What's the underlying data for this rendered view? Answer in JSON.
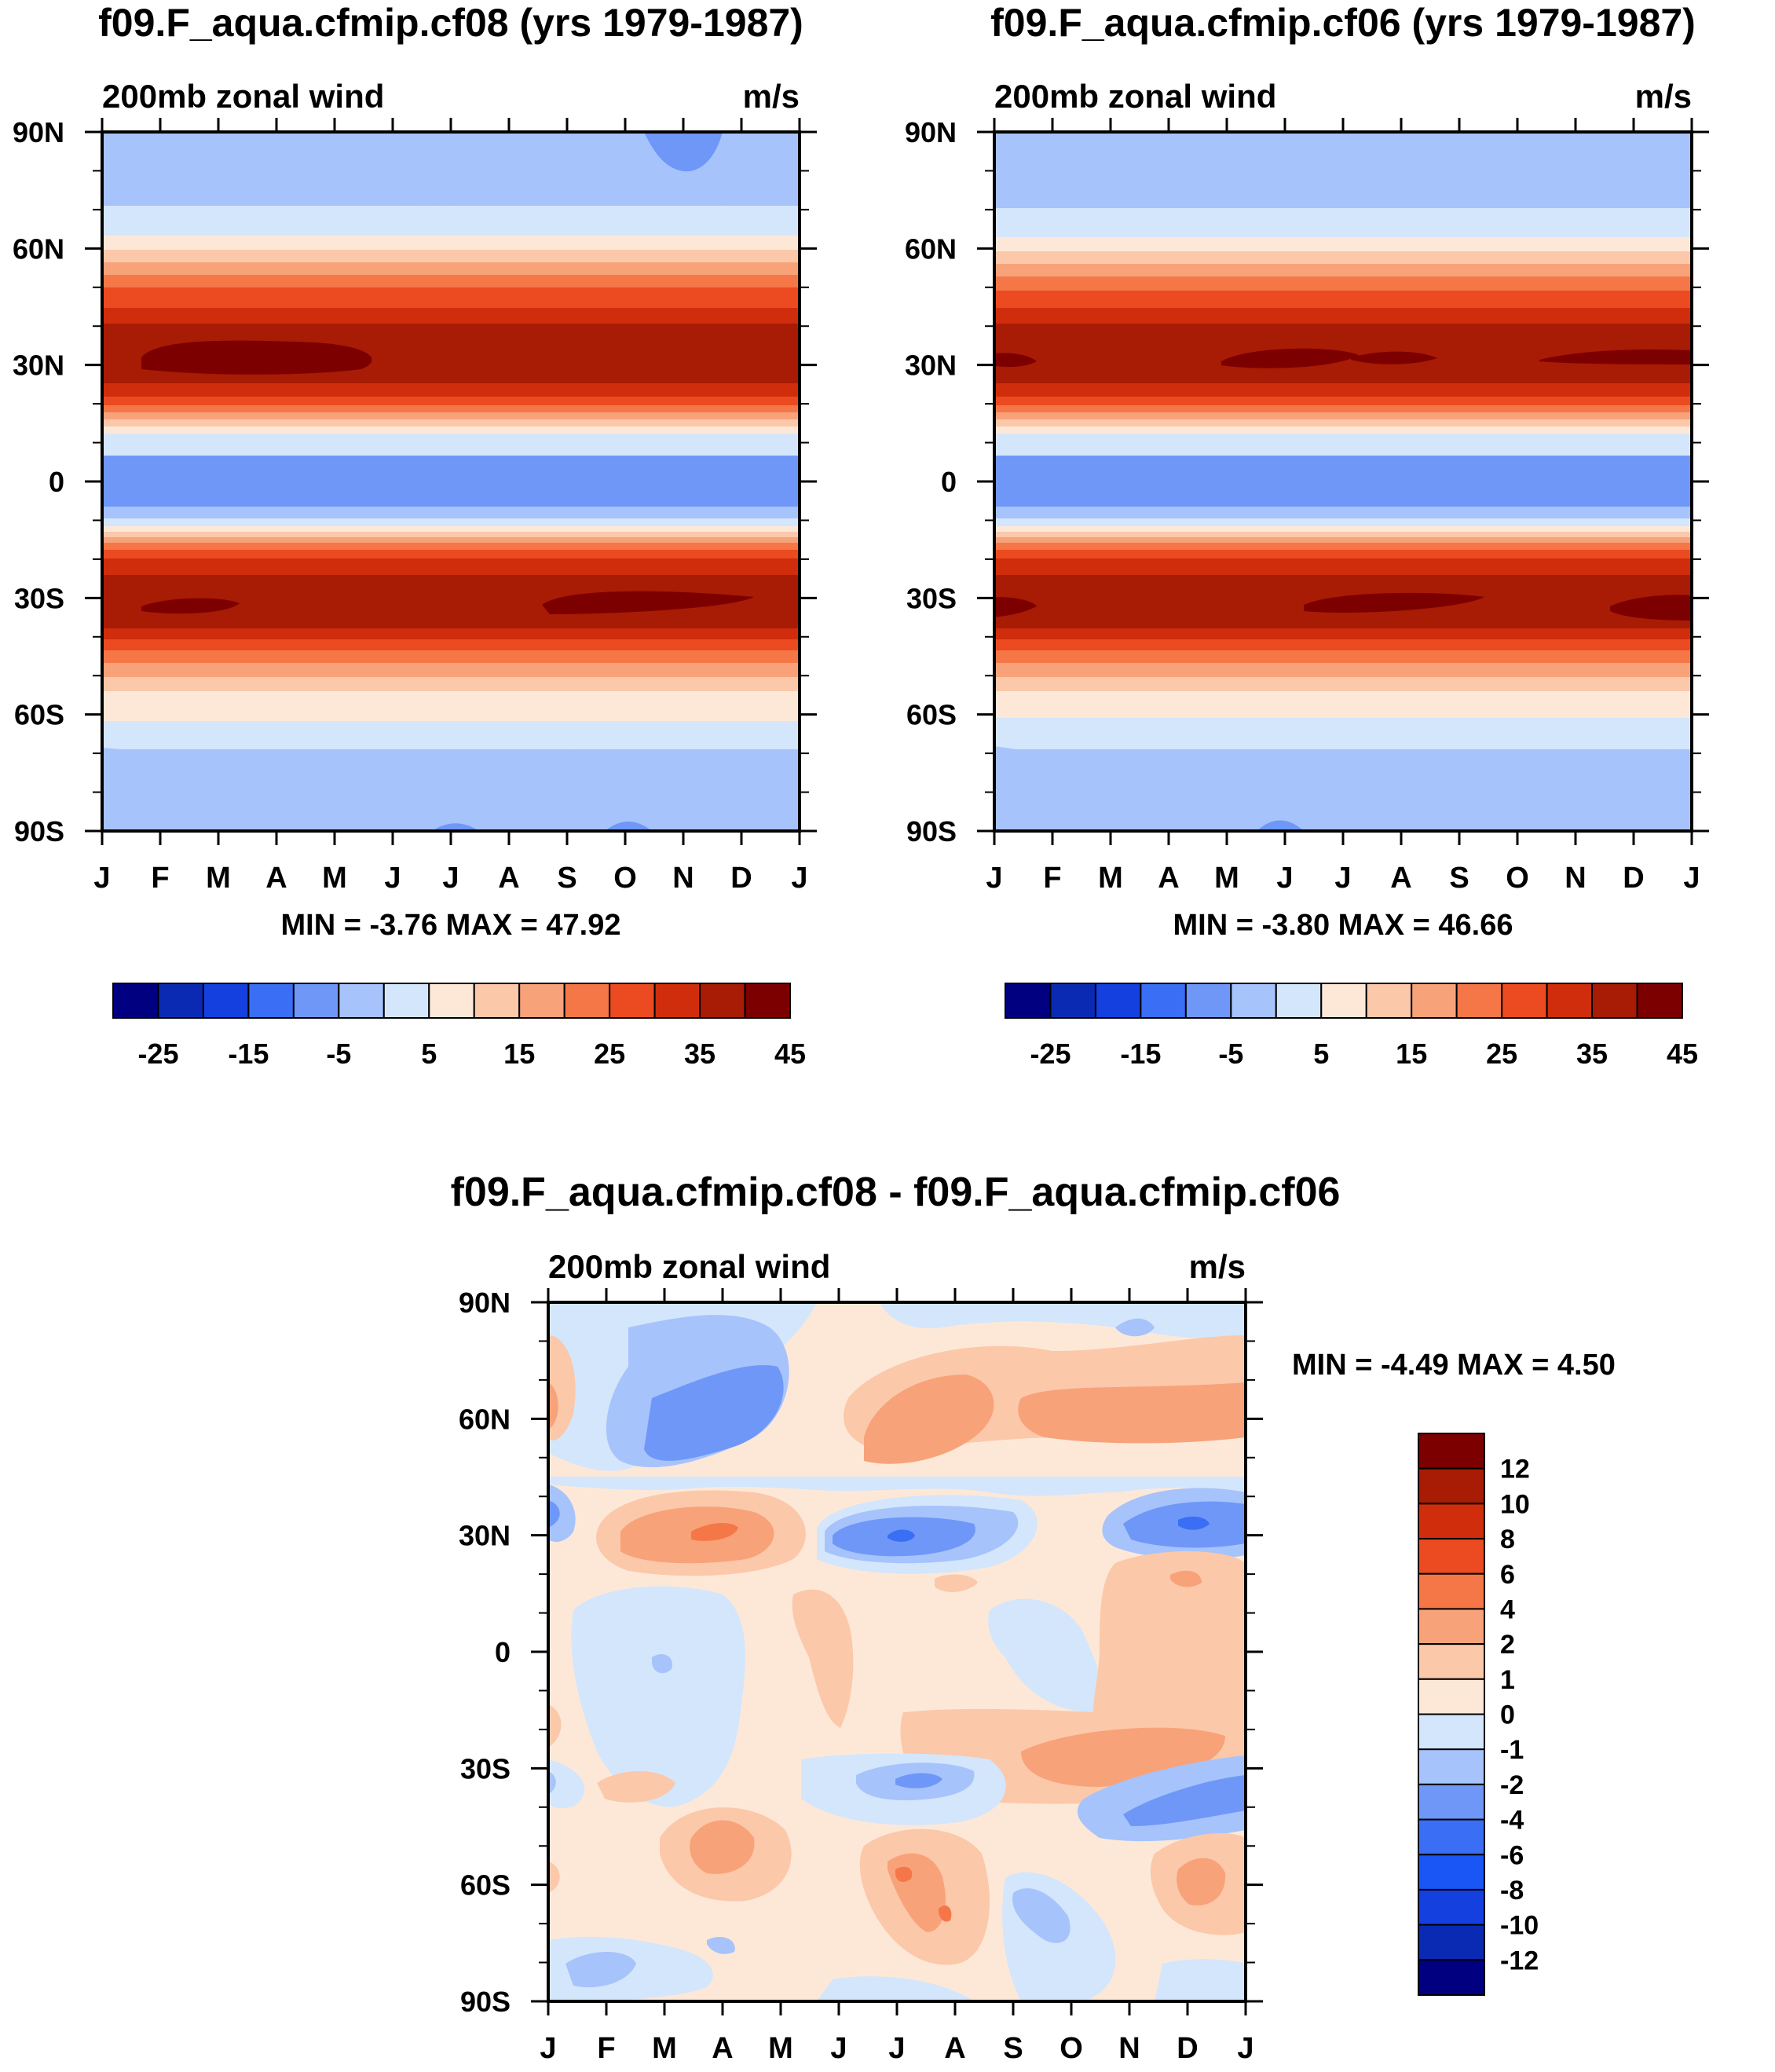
{
  "chart_data": [
    {
      "type": "heatmap",
      "title": "f09.F_aqua.cfmip.cf08 (yrs 1979-1987)",
      "subtitle_left": "200mb zonal wind",
      "subtitle_right": "m/s",
      "x_tick_labels": [
        "J",
        "F",
        "M",
        "A",
        "M",
        "J",
        "J",
        "A",
        "S",
        "O",
        "N",
        "D",
        "J"
      ],
      "y_tick_labels": [
        "90N",
        "60N",
        "30N",
        "0",
        "30S",
        "60S",
        "90S"
      ],
      "ylim": [
        -90,
        90
      ],
      "stats": "MIN =  -3.76 MAX =  47.92",
      "features": {
        "nh_jet_lat": 30,
        "sh_jet_lat": -30,
        "jet_peak": 47.92,
        "equator_min": -3.76
      },
      "colorbar": {
        "orientation": "horizontal",
        "labels": [
          "-25",
          "-15",
          "-5",
          "5",
          "15",
          "25",
          "35",
          "45"
        ],
        "levels": [
          -30,
          -25,
          -20,
          -15,
          -10,
          -5,
          0,
          5,
          10,
          15,
          20,
          25,
          30,
          35,
          40,
          45
        ]
      }
    },
    {
      "type": "heatmap",
      "title": "f09.F_aqua.cfmip.cf06 (yrs 1979-1987)",
      "subtitle_left": "200mb zonal wind",
      "subtitle_right": "m/s",
      "x_tick_labels": [
        "J",
        "F",
        "M",
        "A",
        "M",
        "J",
        "J",
        "A",
        "S",
        "O",
        "N",
        "D",
        "J"
      ],
      "y_tick_labels": [
        "90N",
        "60N",
        "30N",
        "0",
        "30S",
        "60S",
        "90S"
      ],
      "ylim": [
        -90,
        90
      ],
      "stats": "MIN =  -3.80 MAX =  46.66",
      "features": {
        "nh_jet_lat": 30,
        "sh_jet_lat": -30,
        "jet_peak": 46.66,
        "equator_min": -3.8
      },
      "colorbar": {
        "orientation": "horizontal",
        "labels": [
          "-25",
          "-15",
          "-5",
          "5",
          "15",
          "25",
          "35",
          "45"
        ],
        "levels": [
          -30,
          -25,
          -20,
          -15,
          -10,
          -5,
          0,
          5,
          10,
          15,
          20,
          25,
          30,
          35,
          40,
          45
        ]
      }
    },
    {
      "type": "heatmap",
      "title": "f09.F_aqua.cfmip.cf08 - f09.F_aqua.cfmip.cf06",
      "subtitle_left": "200mb zonal wind",
      "subtitle_right": "m/s",
      "x_tick_labels": [
        "J",
        "F",
        "M",
        "A",
        "M",
        "J",
        "J",
        "A",
        "S",
        "O",
        "N",
        "D",
        "J"
      ],
      "y_tick_labels": [
        "90N",
        "60N",
        "30N",
        "0",
        "30S",
        "60S",
        "90S"
      ],
      "ylim": [
        -90,
        90
      ],
      "stats": "MIN =  -4.49 MAX =   4.50",
      "features": {
        "min": -4.49,
        "max": 4.5
      },
      "colorbar": {
        "orientation": "vertical",
        "labels": [
          "12",
          "10",
          "8",
          "6",
          "4",
          "2",
          "1",
          "0",
          "-1",
          "-2",
          "-4",
          "-6",
          "-8",
          "-10",
          "-12"
        ],
        "levels": [
          -12,
          -10,
          -8,
          -6,
          -4,
          -2,
          -1,
          0,
          1,
          2,
          4,
          6,
          8,
          10,
          12
        ]
      }
    }
  ],
  "palette": [
    "#000080",
    "#0a2ab3",
    "#1440e0",
    "#3a6ef5",
    "#6f97f7",
    "#a6c3fb",
    "#d4e6fb",
    "#fde8d8",
    "#fbc8aa",
    "#f8a27a",
    "#f57748",
    "#ec4a20",
    "#d02d0d",
    "#a81b05",
    "#7d0000"
  ]
}
